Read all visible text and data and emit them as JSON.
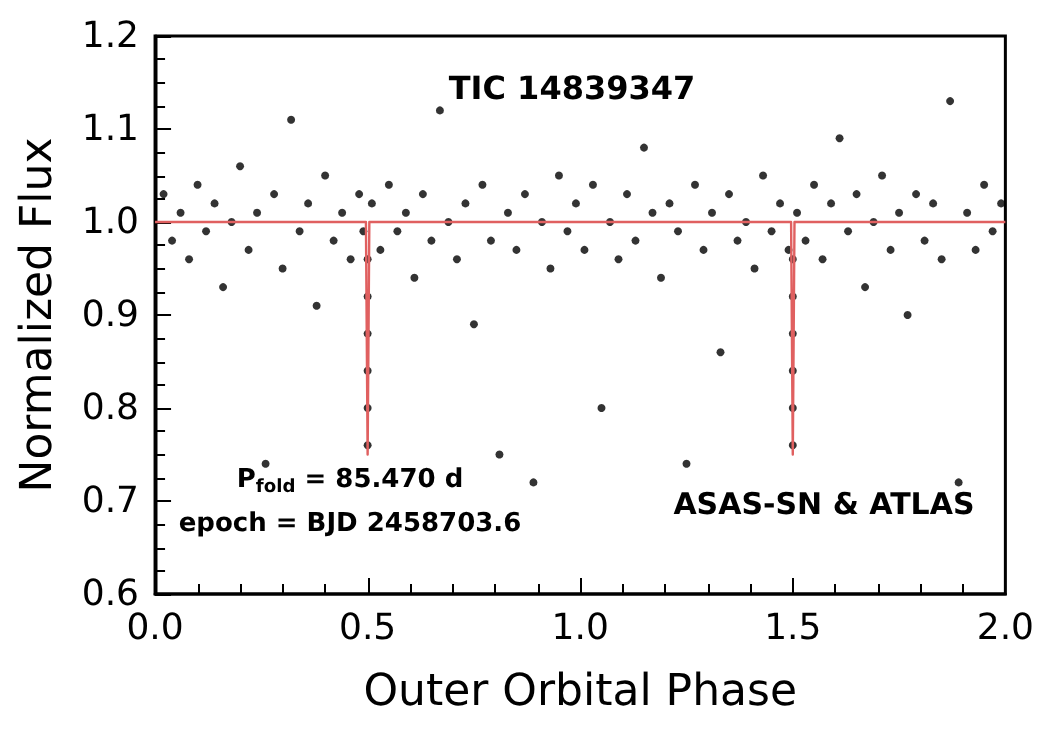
{
  "chart_data": {
    "type": "scatter",
    "xlabel": "Outer Orbital Phase",
    "ylabel": "Normalized Flux",
    "annotations": [
      "TIC 14839347",
      "P$_{fold}$ = 85.470 d",
      "epoch = BJD 2458703.6",
      "ASAS-SN & ATLAS"
    ],
    "xlim": [
      0,
      2
    ],
    "ylim": [
      0.6,
      1.2
    ],
    "xticks": [
      {
        "value": 0,
        "label": "0.0"
      },
      {
        "value": 0.5,
        "label": "0.5"
      },
      {
        "value": 1,
        "label": "1.0"
      },
      {
        "value": 1.5,
        "label": "1.5"
      },
      {
        "value": 2,
        "label": "2.0"
      }
    ],
    "yticks": [
      {
        "value": 0.6,
        "label": "0.6"
      },
      {
        "value": 0.7,
        "label": "0.7"
      },
      {
        "value": 0.8,
        "label": "0.8"
      },
      {
        "value": 0.9,
        "label": "0.9"
      },
      {
        "value": 1,
        "label": "1.0"
      },
      {
        "value": 1.1,
        "label": "1.1"
      },
      {
        "value": 1.2,
        "label": "1.2"
      }
    ],
    "grid": false,
    "marker": "circle",
    "series": [
      {
        "color": "#000000",
        "x": [
          0.02,
          0.04,
          0.06,
          0.08,
          0.1,
          0.12,
          0.14,
          0.16,
          0.18,
          0.2,
          0.22,
          0.24,
          0.26,
          0.28,
          0.3,
          0.32,
          0.34,
          0.36,
          0.38,
          0.4,
          0.42,
          0.44,
          0.46,
          0.48,
          0.49,
          0.5,
          0.5,
          0.5,
          0.5,
          0.5,
          0.5,
          0.51,
          0.53,
          0.55,
          0.57,
          0.59,
          0.61,
          0.63,
          0.65,
          0.67,
          0.69,
          0.71,
          0.73,
          0.75,
          0.77,
          0.79,
          0.81,
          0.83,
          0.85,
          0.87,
          0.89,
          0.91,
          0.93,
          0.95,
          0.97,
          0.99,
          1.01,
          1.03,
          1.05,
          1.07,
          1.09,
          1.11,
          1.13,
          1.15,
          1.17,
          1.19,
          1.21,
          1.23,
          1.25,
          1.27,
          1.29,
          1.31,
          1.33,
          1.35,
          1.37,
          1.39,
          1.41,
          1.43,
          1.45,
          1.47,
          1.49,
          1.5,
          1.5,
          1.5,
          1.5,
          1.5,
          1.5,
          1.51,
          1.53,
          1.55,
          1.57,
          1.59,
          1.61,
          1.63,
          1.65,
          1.67,
          1.69,
          1.71,
          1.73,
          1.75,
          1.77,
          1.79,
          1.81,
          1.83,
          1.85,
          1.87,
          1.89,
          1.91,
          1.93,
          1.95,
          1.97,
          1.99
        ],
        "values": [
          1.03,
          0.98,
          1.01,
          0.96,
          1.04,
          0.99,
          1.02,
          0.93,
          1.0,
          1.06,
          0.97,
          1.01,
          0.74,
          1.03,
          0.95,
          1.11,
          0.99,
          1.02,
          0.91,
          1.05,
          0.98,
          1.01,
          0.96,
          1.03,
          0.99,
          0.76,
          0.8,
          0.84,
          0.88,
          0.92,
          0.96,
          1.02,
          0.97,
          1.04,
          0.99,
          1.01,
          0.94,
          1.03,
          0.98,
          1.12,
          1.0,
          0.96,
          1.02,
          0.89,
          1.04,
          0.98,
          0.75,
          1.01,
          0.97,
          1.03,
          0.72,
          1.0,
          0.95,
          1.05,
          0.99,
          1.02,
          0.97,
          1.04,
          0.8,
          1.0,
          0.96,
          1.03,
          0.98,
          1.08,
          1.01,
          0.94,
          1.02,
          0.99,
          0.74,
          1.04,
          0.97,
          1.01,
          0.86,
          1.03,
          0.98,
          1.0,
          0.95,
          1.05,
          0.99,
          1.02,
          0.97,
          0.76,
          0.8,
          0.84,
          0.88,
          0.92,
          0.96,
          1.01,
          0.98,
          1.04,
          0.96,
          1.02,
          1.09,
          0.99,
          1.03,
          0.93,
          1.0,
          1.05,
          0.97,
          1.01,
          0.9,
          1.03,
          0.98,
          1.02,
          0.96,
          1.13,
          0.72,
          1.01,
          0.97,
          1.04,
          0.99,
          1.02
        ]
      },
      {
        "type": "line",
        "color": "#e06060",
        "marker": "none",
        "line_style": "solid",
        "x": [
          0,
          0.496,
          0.5,
          0.504,
          1.496,
          1.5,
          1.504,
          2
        ],
        "values": [
          1.0,
          1.0,
          0.75,
          1.0,
          1.0,
          0.75,
          1.0,
          1.0
        ]
      }
    ]
  }
}
